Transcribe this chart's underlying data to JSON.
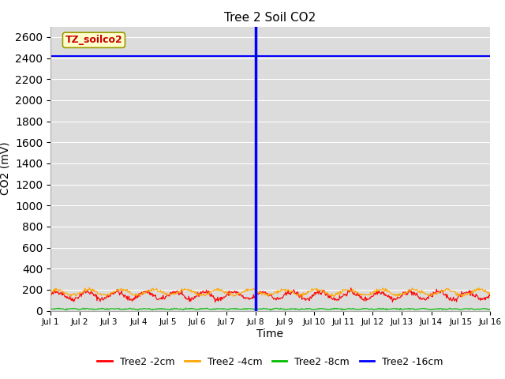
{
  "title": "Tree 2 Soil CO2",
  "xlabel": "Time",
  "ylabel": "CO2 (mV)",
  "ylim": [
    0,
    2700
  ],
  "yticks": [
    0,
    200,
    400,
    600,
    800,
    1000,
    1200,
    1400,
    1600,
    1800,
    2000,
    2200,
    2400,
    2600
  ],
  "xlim": [
    0,
    15
  ],
  "xtick_positions": [
    0,
    1,
    2,
    3,
    4,
    5,
    6,
    7,
    8,
    9,
    10,
    11,
    12,
    13,
    14,
    15
  ],
  "xtick_labels": [
    "Jul 1",
    "Jul 2",
    "Jul 3",
    "Jul 4",
    "Jul 5",
    "Jul 6",
    "Jul 7",
    "Jul 8",
    "Jul 9",
    "Jul 10",
    "Jul 11",
    "Jul 12",
    "Jul 13",
    "Jul 14",
    "Jul 15",
    "Jul 16"
  ],
  "bg_color": "#dcdcdc",
  "fig_color": "#ffffff",
  "annotation_label": "TZ_soilco2",
  "annotation_color": "#cc0000",
  "annotation_bg": "#ffffcc",
  "annotation_border": "#999900",
  "line_colors": {
    "2cm": "#ff0000",
    "4cm": "#ffa500",
    "8cm": "#00bb00",
    "16cm": "#0000ff"
  },
  "legend_labels": [
    "Tree2 -2cm",
    "Tree2 -4cm",
    "Tree2 -8cm",
    "Tree2 -16cm"
  ],
  "blue_flat_value": 2420,
  "vertical_line_x": 7,
  "n_points": 700,
  "seed": 42
}
